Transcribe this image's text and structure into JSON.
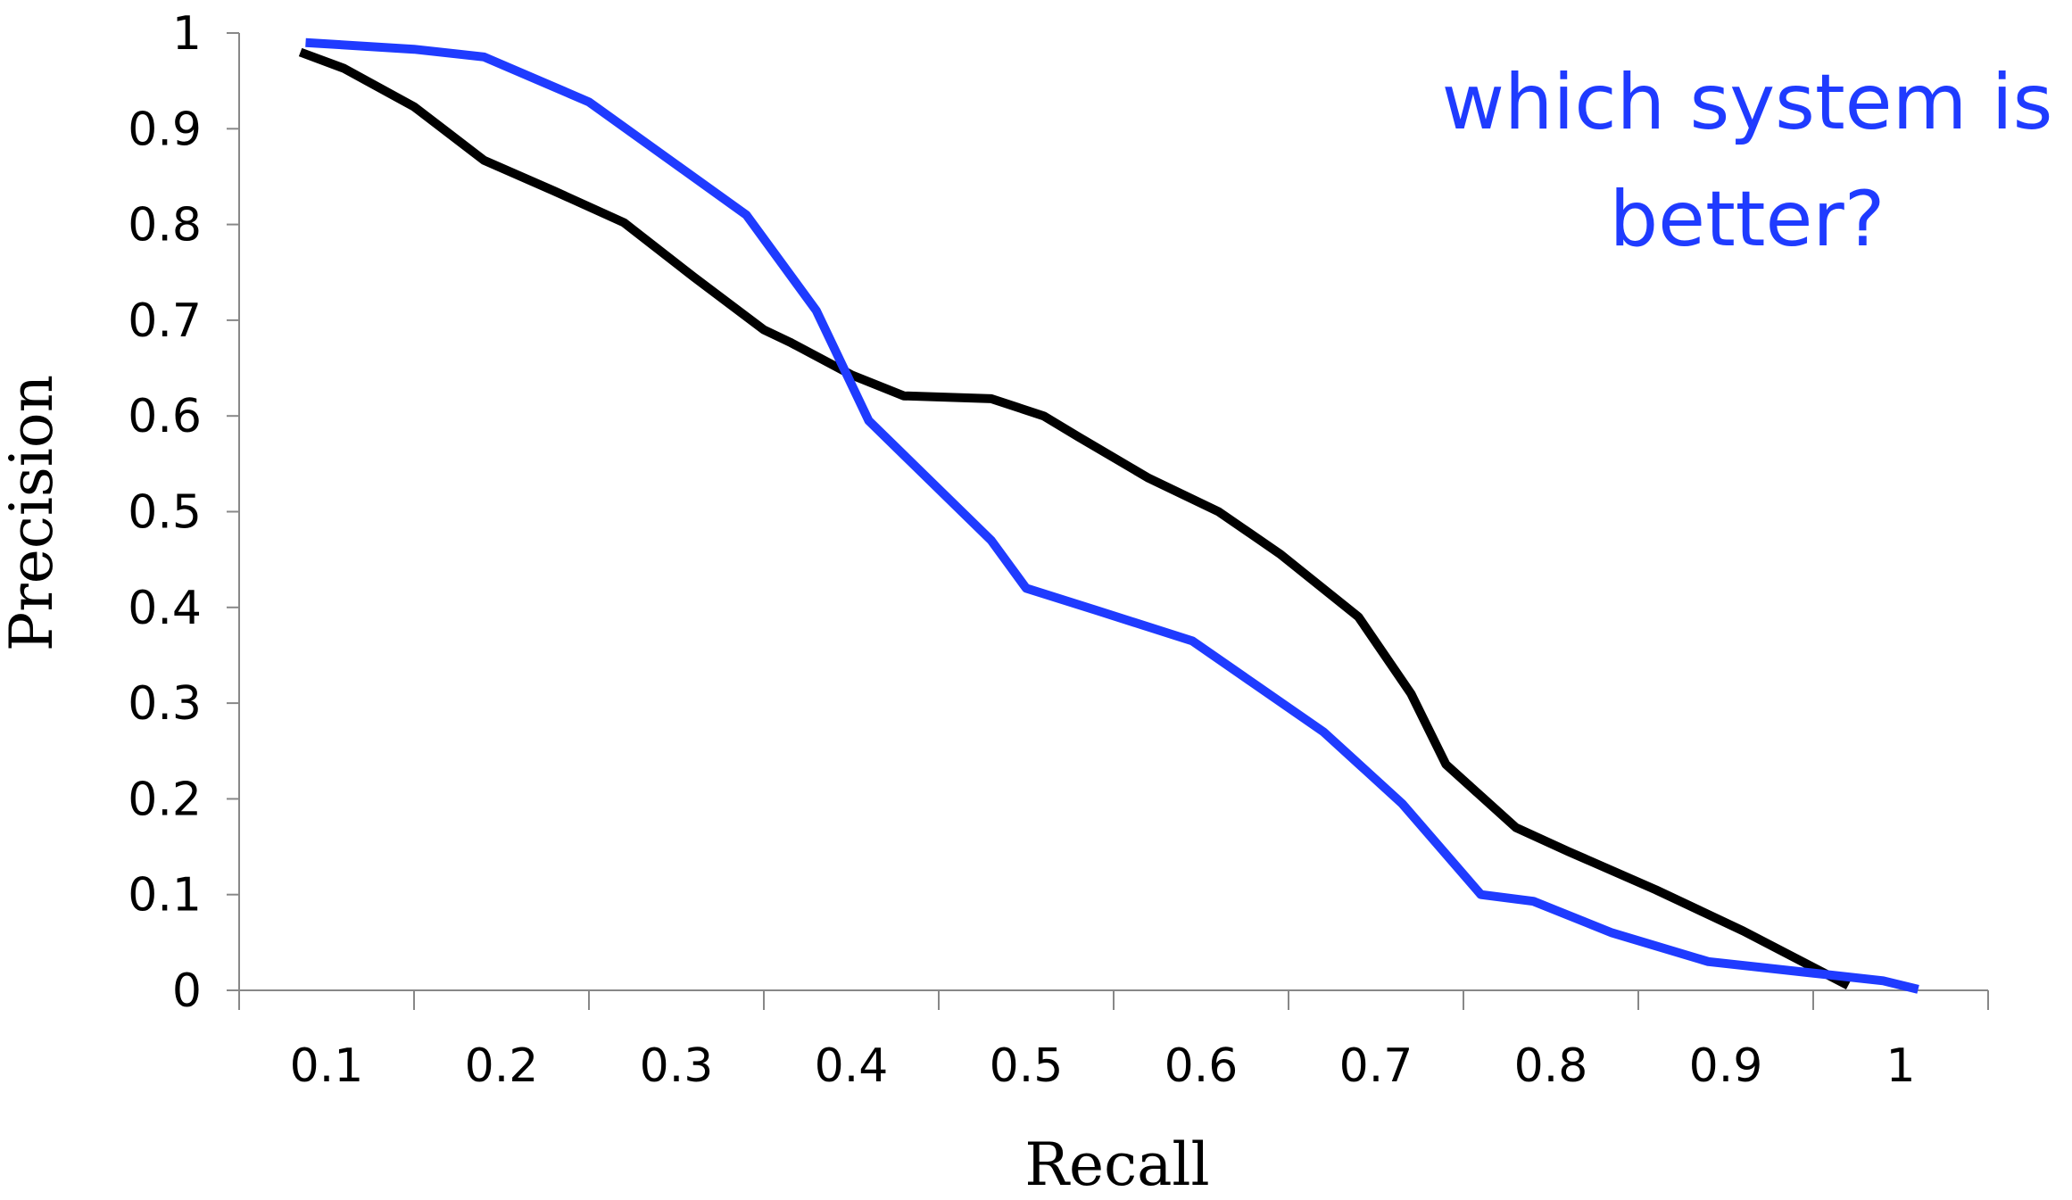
{
  "chart_data": {
    "type": "line",
    "xlabel": "Recall",
    "ylabel": "Precision",
    "x_ticks": [
      "0.1",
      "0.2",
      "0.3",
      "0.4",
      "0.5",
      "0.6",
      "0.7",
      "0.8",
      "0.9",
      "1"
    ],
    "y_ticks": [
      "0",
      "0.1",
      "0.2",
      "0.3",
      "0.4",
      "0.5",
      "0.6",
      "0.7",
      "0.8",
      "0.9",
      "1"
    ],
    "xlim": [
      0.05,
      1.05
    ],
    "ylim": [
      0,
      1
    ],
    "grid": false,
    "annotation": [
      "which system is",
      "better?"
    ],
    "annotation_color": "#1f3bff",
    "series": [
      {
        "color": "#000000",
        "points": [
          [
            0.085,
            0.98
          ],
          [
            0.11,
            0.963
          ],
          [
            0.15,
            0.923
          ],
          [
            0.19,
            0.867
          ],
          [
            0.23,
            0.835
          ],
          [
            0.27,
            0.802
          ],
          [
            0.31,
            0.745
          ],
          [
            0.35,
            0.69
          ],
          [
            0.365,
            0.677
          ],
          [
            0.4,
            0.643
          ],
          [
            0.43,
            0.621
          ],
          [
            0.48,
            0.618
          ],
          [
            0.51,
            0.6
          ],
          [
            0.53,
            0.578
          ],
          [
            0.57,
            0.535
          ],
          [
            0.61,
            0.5
          ],
          [
            0.645,
            0.456
          ],
          [
            0.69,
            0.39
          ],
          [
            0.72,
            0.31
          ],
          [
            0.74,
            0.236
          ],
          [
            0.78,
            0.17
          ],
          [
            0.81,
            0.145
          ],
          [
            0.86,
            0.105
          ],
          [
            0.91,
            0.062
          ],
          [
            0.97,
            0.005
          ]
        ]
      },
      {
        "color": "#1f3bff",
        "points": [
          [
            0.088,
            0.99
          ],
          [
            0.15,
            0.983
          ],
          [
            0.19,
            0.975
          ],
          [
            0.25,
            0.928
          ],
          [
            0.34,
            0.81
          ],
          [
            0.38,
            0.71
          ],
          [
            0.41,
            0.595
          ],
          [
            0.48,
            0.47
          ],
          [
            0.5,
            0.42
          ],
          [
            0.54,
            0.397
          ],
          [
            0.595,
            0.365
          ],
          [
            0.67,
            0.27
          ],
          [
            0.715,
            0.195
          ],
          [
            0.76,
            0.1
          ],
          [
            0.79,
            0.093
          ],
          [
            0.835,
            0.06
          ],
          [
            0.89,
            0.03
          ],
          [
            0.99,
            0.01
          ],
          [
            1.01,
            0.001
          ]
        ]
      }
    ]
  }
}
